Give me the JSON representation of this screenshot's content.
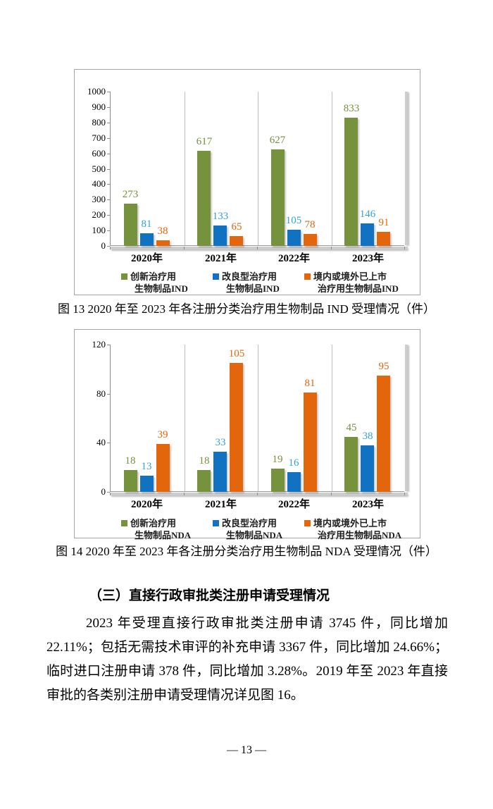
{
  "captions": {
    "fig13": "图 13  2020 年至 2023 年各注册分类治疗用生物制品 IND 受理情况（件）",
    "fig14": "图 14  2020 年至 2023 年各注册分类治疗用生物制品 NDA 受理情况（件）"
  },
  "section": {
    "heading": "（三）直接行政审批类注册申请受理情况",
    "paragraph": "2023 年受理直接行政审批类注册申请 3745 件，同比增加 22.11%；包括无需技术审评的补充申请 3367 件，同比增加 24.66%；临时进口注册申请 378 件，同比增加 3.28%。2019 年至 2023 年直接审批的各类别注册申请受理情况详见图 16。"
  },
  "footer": {
    "page_number": "— 13 —"
  },
  "chart_data": [
    {
      "type": "bar",
      "title": "",
      "categories": [
        "2020年",
        "2021年",
        "2022年",
        "2023年"
      ],
      "series": [
        {
          "name": "创新治疗用生物制品IND",
          "legend_lines": [
            "创新治疗用",
            "生物制品IND"
          ],
          "color": "#76923C",
          "label_color": "#76923C",
          "values": [
            273,
            617,
            627,
            833
          ]
        },
        {
          "name": "改良型治疗用生物制品IND",
          "legend_lines": [
            "改良型治疗用",
            "生物制品IND"
          ],
          "color": "#1272C2",
          "label_color": "#33A3DC",
          "values": [
            81,
            133,
            105,
            146
          ]
        },
        {
          "name": "境内或境外已上市治疗用生物制品IND",
          "legend_lines": [
            "境内或境外已上市",
            "治疗用生物制品IND"
          ],
          "color": "#E3660C",
          "label_color": "#E3660C",
          "values": [
            38,
            65,
            78,
            91
          ]
        }
      ],
      "xlabel": "",
      "ylabel": "",
      "ylim": [
        0,
        1000
      ],
      "yticks": [
        0,
        100,
        200,
        300,
        400,
        500,
        600,
        700,
        800,
        900,
        1000
      ],
      "grid": "vertical-category-separators",
      "legend_position": "bottom"
    },
    {
      "type": "bar",
      "title": "",
      "categories": [
        "2020年",
        "2021年",
        "2022年",
        "2023年"
      ],
      "series": [
        {
          "name": "创新治疗用生物制品NDA",
          "legend_lines": [
            "创新治疗用",
            "生物制品NDA"
          ],
          "color": "#76923C",
          "label_color": "#76923C",
          "values": [
            18,
            18,
            19,
            45
          ]
        },
        {
          "name": "改良型治疗用生物制品NDA",
          "legend_lines": [
            "改良型治疗用",
            "生物制品NDA"
          ],
          "color": "#1272C2",
          "label_color": "#33A3DC",
          "values": [
            13,
            33,
            16,
            38
          ]
        },
        {
          "name": "境内或境外已上市治疗用生物制品NDA",
          "legend_lines": [
            "境内或境外已上市",
            "治疗用生物制品NDA"
          ],
          "color": "#E3660C",
          "label_color": "#E3660C",
          "values": [
            39,
            105,
            81,
            95
          ]
        }
      ],
      "xlabel": "",
      "ylabel": "",
      "ylim": [
        0,
        120
      ],
      "yticks": [
        0,
        40,
        80,
        120
      ],
      "grid": "vertical-category-separators",
      "legend_position": "bottom"
    }
  ]
}
